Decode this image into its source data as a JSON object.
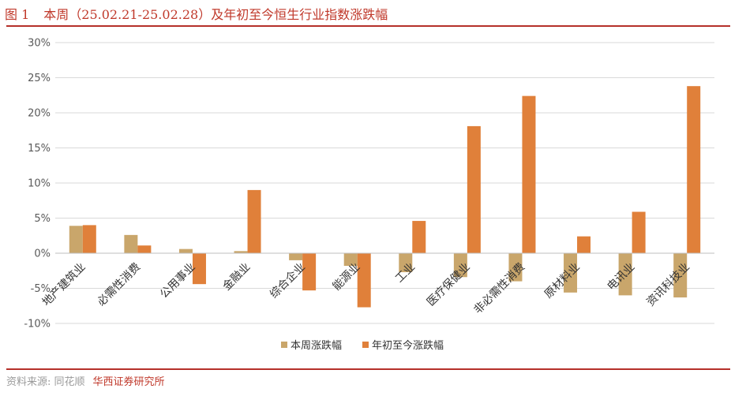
{
  "figure": {
    "number": "图 1",
    "title": "本周（25.02.21-25.02.28）及年初至今恒生行业指数涨跌幅"
  },
  "source": {
    "watermark": "资料来源: 同花顺",
    "org": "华西证券研究所"
  },
  "colors": {
    "week": "#c9a66b",
    "ytd": "#e0803a",
    "accent": "#b5302a",
    "grid": "#d9d9d9",
    "axis_text": "#595959"
  },
  "chart_data": {
    "type": "bar",
    "title": "本周（25.02.21-25.02.28）及年初至今恒生行业指数涨跌幅",
    "xlabel": "",
    "ylabel": "",
    "ylim": [
      -10,
      30
    ],
    "yticks": [
      "-10%",
      "-5%",
      "0%",
      "5%",
      "10%",
      "15%",
      "20%",
      "25%",
      "30%"
    ],
    "grid": true,
    "legend_position": "bottom",
    "categories": [
      "地产建筑业",
      "必需性消费",
      "公用事业",
      "金融业",
      "综合企业",
      "能源业",
      "工业",
      "医疗保健业",
      "非必需性消费",
      "原材料业",
      "电讯业",
      "资讯科技业"
    ],
    "series": [
      {
        "name": "本周涨跌幅",
        "values": [
          3.9,
          2.6,
          0.6,
          0.3,
          -1.0,
          -1.8,
          -2.7,
          -3.4,
          -4.0,
          -5.6,
          -6.0,
          -6.3
        ]
      },
      {
        "name": "年初至今涨跌幅",
        "values": [
          4.0,
          1.1,
          -4.4,
          9.0,
          -5.3,
          -7.7,
          4.6,
          18.1,
          22.4,
          2.4,
          5.9,
          23.8
        ]
      }
    ]
  }
}
